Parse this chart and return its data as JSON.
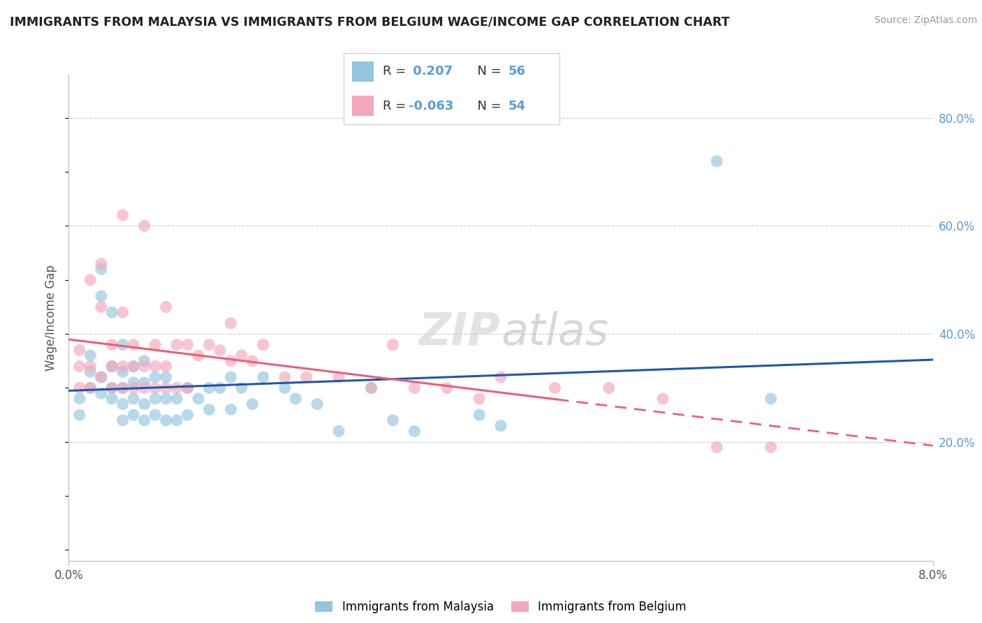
{
  "title": "IMMIGRANTS FROM MALAYSIA VS IMMIGRANTS FROM BELGIUM WAGE/INCOME GAP CORRELATION CHART",
  "source": "Source: ZipAtlas.com",
  "ylabel": "Wage/Income Gap",
  "ytick_vals": [
    0.2,
    0.4,
    0.6,
    0.8
  ],
  "ytick_labels": [
    "20.0%",
    "40.0%",
    "60.0%",
    "80.0%"
  ],
  "xlim": [
    0.0,
    0.08
  ],
  "ylim": [
    -0.02,
    0.88
  ],
  "malaysia_color": "#92C5DE",
  "belgium_color": "#F4A6BB",
  "malaysia_line_color": "#2255AA",
  "belgium_line_color": "#E8607A",
  "malaysia_label": "Immigrants from Malaysia",
  "belgium_label": "Immigrants from Belgium",
  "R_malaysia": 0.207,
  "N_malaysia": 56,
  "R_belgium": -0.063,
  "N_belgium": 54,
  "watermark": "ZIPatlas",
  "legend_text_color": "#5b9bd5",
  "legend_R_color": "#333333",
  "malaysia_x": [
    0.001,
    0.001,
    0.002,
    0.002,
    0.002,
    0.003,
    0.003,
    0.003,
    0.003,
    0.004,
    0.004,
    0.004,
    0.004,
    0.005,
    0.005,
    0.005,
    0.005,
    0.005,
    0.006,
    0.006,
    0.006,
    0.006,
    0.007,
    0.007,
    0.007,
    0.007,
    0.008,
    0.008,
    0.008,
    0.009,
    0.009,
    0.009,
    0.01,
    0.01,
    0.011,
    0.011,
    0.012,
    0.013,
    0.013,
    0.014,
    0.015,
    0.015,
    0.016,
    0.017,
    0.018,
    0.02,
    0.021,
    0.023,
    0.025,
    0.028,
    0.03,
    0.032,
    0.038,
    0.04,
    0.06,
    0.065
  ],
  "malaysia_y": [
    0.25,
    0.28,
    0.3,
    0.33,
    0.36,
    0.29,
    0.32,
    0.47,
    0.52,
    0.28,
    0.3,
    0.34,
    0.44,
    0.24,
    0.27,
    0.3,
    0.33,
    0.38,
    0.25,
    0.28,
    0.31,
    0.34,
    0.24,
    0.27,
    0.31,
    0.35,
    0.25,
    0.28,
    0.32,
    0.24,
    0.28,
    0.32,
    0.24,
    0.28,
    0.25,
    0.3,
    0.28,
    0.26,
    0.3,
    0.3,
    0.26,
    0.32,
    0.3,
    0.27,
    0.32,
    0.3,
    0.28,
    0.27,
    0.22,
    0.3,
    0.24,
    0.22,
    0.25,
    0.23,
    0.72,
    0.28
  ],
  "belgium_x": [
    0.001,
    0.001,
    0.001,
    0.002,
    0.002,
    0.002,
    0.003,
    0.003,
    0.003,
    0.004,
    0.004,
    0.004,
    0.005,
    0.005,
    0.005,
    0.005,
    0.006,
    0.006,
    0.006,
    0.007,
    0.007,
    0.007,
    0.008,
    0.008,
    0.008,
    0.009,
    0.009,
    0.009,
    0.01,
    0.01,
    0.011,
    0.011,
    0.012,
    0.013,
    0.014,
    0.015,
    0.015,
    0.016,
    0.017,
    0.018,
    0.02,
    0.022,
    0.025,
    0.028,
    0.03,
    0.032,
    0.035,
    0.038,
    0.04,
    0.045,
    0.05,
    0.055,
    0.06,
    0.065
  ],
  "belgium_y": [
    0.3,
    0.34,
    0.37,
    0.3,
    0.34,
    0.5,
    0.32,
    0.45,
    0.53,
    0.3,
    0.34,
    0.38,
    0.3,
    0.34,
    0.44,
    0.62,
    0.3,
    0.34,
    0.38,
    0.3,
    0.34,
    0.6,
    0.3,
    0.34,
    0.38,
    0.3,
    0.34,
    0.45,
    0.3,
    0.38,
    0.3,
    0.38,
    0.36,
    0.38,
    0.37,
    0.35,
    0.42,
    0.36,
    0.35,
    0.38,
    0.32,
    0.32,
    0.32,
    0.3,
    0.38,
    0.3,
    0.3,
    0.28,
    0.32,
    0.3,
    0.3,
    0.28,
    0.19,
    0.19
  ]
}
